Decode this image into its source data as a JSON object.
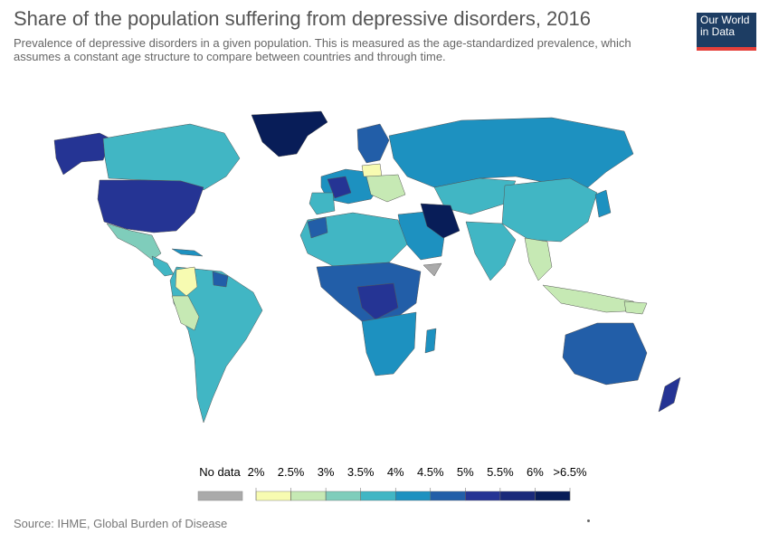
{
  "title": "Share of the population suffering from depressive disorders, 2016",
  "subtitle": "Prevalence of depressive disorders in a given population. This is measured as the age-standardized prevalence, which assumes a constant age structure to compare between countries and through time.",
  "logo": {
    "line1": "Our World",
    "line2": "in Data"
  },
  "source": "Source: IHME, Global Burden of Disease",
  "legend": {
    "no_data_label": "No data",
    "labels": [
      "2%",
      "2.5%",
      "3%",
      "3.5%",
      "4%",
      "4.5%",
      "5%",
      "5.5%",
      "6%",
      ">6.5%"
    ],
    "colors": [
      "#f7fbb1",
      "#c6e9b4",
      "#7fcdbb",
      "#41b6c4",
      "#1d91c0",
      "#225ea8",
      "#253494",
      "#1a2a7a",
      "#081d58"
    ],
    "no_data_color": "#aaaaaa"
  },
  "colors": {
    "c2": "#f7fbb1",
    "c25": "#c6e9b4",
    "c3": "#7fcdbb",
    "c35": "#41b6c4",
    "c4": "#1d91c0",
    "c45": "#225ea8",
    "c5": "#253494",
    "c55": "#1a2a7a",
    "c65": "#081d58",
    "nodata": "#aaaaaa"
  }
}
